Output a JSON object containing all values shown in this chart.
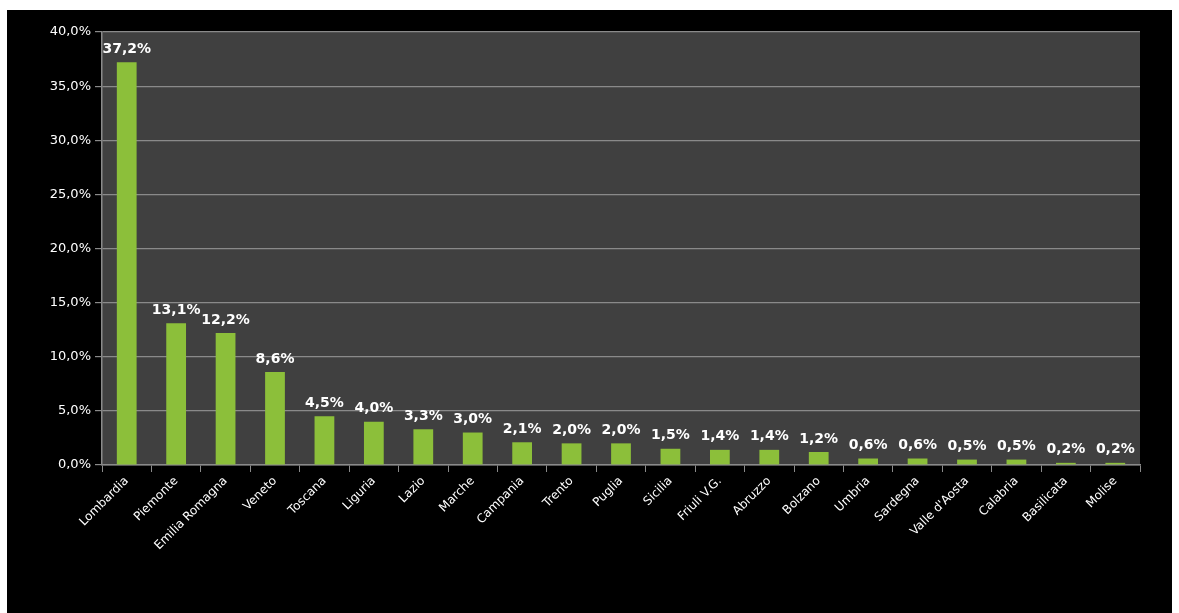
{
  "chart_data": {
    "type": "bar",
    "categories": [
      "Lombardia",
      "Piemonte",
      "Emilia Romagna",
      "Veneto",
      "Toscana",
      "Liguria",
      "Lazio",
      "Marche",
      "Campania",
      "Trento",
      "Puglia",
      "Sicilia",
      "Friuli V.G.",
      "Abruzzo",
      "Bolzano",
      "Umbria",
      "Sardegna",
      "Valle d'Aosta",
      "Calabria",
      "Basilicata",
      "Molise"
    ],
    "values": [
      37.2,
      13.1,
      12.2,
      8.6,
      4.5,
      4.0,
      3.3,
      3.0,
      2.1,
      2.0,
      2.0,
      1.5,
      1.4,
      1.4,
      1.2,
      0.6,
      0.6,
      0.5,
      0.5,
      0.2,
      0.2
    ],
    "value_labels": [
      "37,2%",
      "13,1%",
      "12,2%",
      "8,6%",
      "4,5%",
      "4,0%",
      "3,3%",
      "3,0%",
      "2,1%",
      "2,0%",
      "2,0%",
      "1,5%",
      "1,4%",
      "1,4%",
      "1,2%",
      "0,6%",
      "0,6%",
      "0,5%",
      "0,5%",
      "0,2%",
      "0,2%"
    ],
    "color": "#8cbf3a",
    "ylim": [
      0,
      40
    ],
    "yticks": [
      {
        "value": 0,
        "label": "0,0%"
      },
      {
        "value": 5,
        "label": "5,0%"
      },
      {
        "value": 10,
        "label": "10,0%"
      },
      {
        "value": 15,
        "label": "15,0%"
      },
      {
        "value": 20,
        "label": "20,0%"
      },
      {
        "value": 25,
        "label": "25,0%"
      },
      {
        "value": 30,
        "label": "30,0%"
      },
      {
        "value": 35,
        "label": "35,0%"
      },
      {
        "value": 40,
        "label": "40,0%"
      }
    ],
    "grid": "y"
  }
}
